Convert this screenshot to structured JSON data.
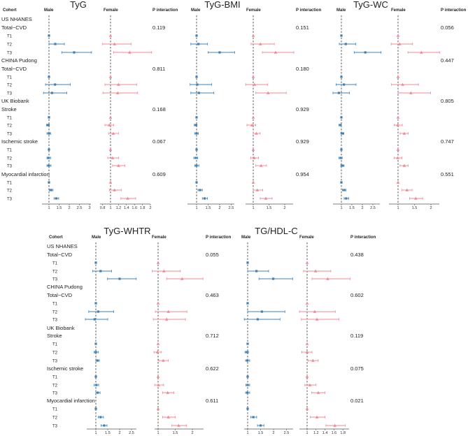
{
  "colors": {
    "male": "#3f80b6",
    "female": "#ef8a93",
    "ref_line": "#333333",
    "axis": "#555555"
  },
  "labels": {
    "cohort_header": "Cohort",
    "male": "Male",
    "female": "Female",
    "p_header": "P interaction",
    "tiers": [
      "T1",
      "T2",
      "T3"
    ],
    "groups": [
      {
        "cohort": "US NHANES",
        "outcomes": [
          "Total−CVD"
        ]
      },
      {
        "cohort": "CHINA Pudong",
        "outcomes": [
          "Total−CVD"
        ]
      },
      {
        "cohort": "UK Biobank",
        "outcomes": [
          "Stroke",
          "Ischemic stroke",
          "Myocardial infarction"
        ]
      }
    ]
  },
  "chart_data": [
    {
      "type": "forest",
      "title": "TyG",
      "p_interaction": [
        "0.119",
        "0.811",
        "0.168",
        "0.067",
        "0.609"
      ],
      "male_ticks": [
        1,
        1.5,
        2,
        2.5,
        3
      ],
      "female_ticks": [
        0.8,
        1,
        1.2,
        1.4,
        1.6,
        1.8,
        2
      ],
      "male": [
        [
          [
            1,
            1,
            1
          ],
          [
            1.31,
            1.0,
            1.76
          ],
          [
            2.24,
            1.63,
            3.1
          ]
        ],
        [
          [
            1,
            1,
            1
          ],
          [
            1.3,
            0.83,
            2.05
          ],
          [
            1.15,
            0.73,
            1.88
          ]
        ],
        [
          [
            1,
            1,
            1
          ],
          [
            0.95,
            0.88,
            1.02
          ],
          [
            1.0,
            0.9,
            1.08
          ]
        ],
        [
          [
            1,
            1,
            1
          ],
          [
            0.98,
            0.9,
            1.08
          ],
          [
            0.99,
            0.9,
            1.1
          ]
        ],
        [
          [
            1,
            1,
            1
          ],
          [
            1.1,
            1.02,
            1.2
          ],
          [
            1.36,
            1.25,
            1.48
          ]
        ]
      ],
      "female": [
        [
          [
            1,
            1,
            1
          ],
          [
            1.1,
            0.8,
            1.52
          ],
          [
            1.48,
            1.08,
            2.03
          ]
        ],
        [
          [
            1,
            1,
            1
          ],
          [
            1.2,
            0.86,
            1.66
          ],
          [
            1.18,
            0.81,
            1.68
          ]
        ],
        [
          [
            1,
            1,
            1
          ],
          [
            0.97,
            0.86,
            1.08
          ],
          [
            1.07,
            0.95,
            1.2
          ]
        ],
        [
          [
            1,
            1,
            1
          ],
          [
            1.05,
            0.93,
            1.2
          ],
          [
            1.2,
            1.05,
            1.36
          ]
        ],
        [
          [
            1,
            1,
            1
          ],
          [
            1.1,
            0.97,
            1.27
          ],
          [
            1.43,
            1.26,
            1.63
          ]
        ]
      ]
    },
    {
      "type": "forest",
      "title": "TyG-BMI",
      "p_interaction": [
        "0.151",
        "0.180",
        "0.929",
        "0.929",
        "0.954"
      ],
      "male_ticks": [
        1,
        1.5,
        2,
        2.5
      ],
      "female_ticks": [
        1,
        1.5,
        2
      ],
      "male": [
        [
          [
            1,
            1,
            1
          ],
          [
            1.08,
            0.75,
            1.47
          ],
          [
            2.0,
            1.5,
            2.65
          ]
        ],
        [
          [
            1,
            1,
            1
          ],
          [
            1.03,
            0.72,
            1.65
          ],
          [
            1.1,
            0.75,
            1.75
          ]
        ],
        [
          [
            1,
            1,
            1
          ],
          [
            0.97,
            0.9,
            1.02
          ],
          [
            1.0,
            0.92,
            1.08
          ]
        ],
        [
          [
            1,
            1,
            1
          ],
          [
            0.97,
            0.88,
            1.05
          ],
          [
            1.0,
            0.92,
            1.1
          ]
        ],
        [
          [
            1,
            1,
            1
          ],
          [
            1.15,
            1.06,
            1.25
          ],
          [
            1.35,
            1.25,
            1.47
          ]
        ]
      ],
      "female": [
        [
          [
            1,
            1,
            1
          ],
          [
            1.23,
            0.93,
            1.67
          ],
          [
            1.71,
            1.29,
            2.29
          ]
        ],
        [
          [
            1,
            1,
            1
          ],
          [
            1.04,
            0.76,
            1.46
          ],
          [
            1.47,
            1.08,
            2.05
          ]
        ],
        [
          [
            1,
            1,
            1
          ],
          [
            0.96,
            0.8,
            1.08
          ],
          [
            1.1,
            1.0,
            1.22
          ]
        ],
        [
          [
            1,
            1,
            1
          ],
          [
            1.03,
            0.92,
            1.17
          ],
          [
            1.25,
            1.08,
            1.42
          ]
        ],
        [
          [
            1,
            1,
            1
          ],
          [
            1.13,
            1.0,
            1.3
          ],
          [
            1.4,
            1.22,
            1.6
          ]
        ]
      ]
    },
    {
      "type": "forest",
      "title": "TyG-WC",
      "p_interaction": [
        "0.056",
        "0.447",
        "0.805",
        "0.747",
        "0.551"
      ],
      "male_ticks": [
        1,
        1.5,
        2,
        2.5
      ],
      "female_ticks": [
        1,
        1.5,
        2
      ],
      "male": [
        [
          [
            1,
            1,
            1
          ],
          [
            1.21,
            0.9,
            1.69
          ],
          [
            2.14,
            1.61,
            2.89
          ]
        ],
        [
          [
            1,
            1,
            1
          ],
          [
            1.12,
            0.75,
            1.7
          ],
          [
            0.88,
            0.6,
            1.38
          ]
        ],
        [
          [
            1,
            1,
            1
          ],
          [
            0.96,
            0.88,
            1.0
          ],
          [
            1.05,
            0.97,
            1.12
          ]
        ],
        [
          [
            1,
            1,
            1
          ],
          [
            0.97,
            0.88,
            1.04
          ],
          [
            1.05,
            0.97,
            1.13
          ]
        ],
        [
          [
            1,
            1,
            1
          ],
          [
            1.13,
            1.05,
            1.22
          ],
          [
            1.23,
            1.13,
            1.35
          ]
        ]
      ],
      "female": [
        [
          [
            1,
            1,
            1
          ],
          [
            1.05,
            0.79,
            1.44
          ],
          [
            1.71,
            1.3,
            2.27
          ]
        ],
        [
          [
            1,
            1,
            1
          ],
          [
            1.14,
            0.8,
            1.62
          ],
          [
            1.39,
            1.0,
            1.99
          ]
        ],
        [
          [
            1,
            1,
            1
          ],
          [
            0.99,
            0.88,
            1.13
          ],
          [
            1.19,
            1.06,
            1.31
          ]
        ],
        [
          [
            1,
            1,
            1
          ],
          [
            0.99,
            0.88,
            1.12
          ],
          [
            1.19,
            1.06,
            1.31
          ]
        ],
        [
          [
            1,
            1,
            1
          ],
          [
            1.27,
            1.12,
            1.43
          ],
          [
            1.54,
            1.35,
            1.75
          ]
        ]
      ]
    },
    {
      "type": "forest",
      "title": "TyG-WHTR",
      "p_interaction": [
        "0.055",
        "0.463",
        "0.712",
        "0.622",
        "0.611"
      ],
      "male_ticks": [
        1,
        1.5,
        2,
        2.5
      ],
      "female_ticks": [
        1,
        1.5,
        2
      ],
      "male": [
        [
          [
            1,
            1,
            1
          ],
          [
            1.2,
            0.87,
            1.66
          ],
          [
            2.0,
            1.49,
            2.7
          ]
        ],
        [
          [
            1,
            1,
            1
          ],
          [
            1.1,
            0.7,
            1.75
          ],
          [
            0.95,
            0.56,
            1.5
          ]
        ],
        [
          [
            1,
            1,
            1
          ],
          [
            1.0,
            0.93,
            1.1
          ],
          [
            1.07,
            1.0,
            1.15
          ]
        ],
        [
          [
            1,
            1,
            1
          ],
          [
            1.02,
            0.93,
            1.12
          ],
          [
            1.08,
            1.0,
            1.18
          ]
        ],
        [
          [
            1,
            1,
            1
          ],
          [
            1.2,
            1.1,
            1.32
          ],
          [
            1.35,
            1.22,
            1.47
          ]
        ]
      ],
      "female": [
        [
          [
            1,
            1,
            1
          ],
          [
            1.17,
            0.83,
            1.65
          ],
          [
            1.7,
            1.25,
            2.31
          ]
        ],
        [
          [
            1,
            1,
            1
          ],
          [
            1.3,
            0.92,
            1.84
          ],
          [
            1.25,
            0.86,
            1.8
          ]
        ],
        [
          [
            1,
            1,
            1
          ],
          [
            0.98,
            0.88,
            1.09
          ],
          [
            1.15,
            1.02,
            1.3
          ]
        ],
        [
          [
            1,
            1,
            1
          ],
          [
            1.01,
            0.9,
            1.16
          ],
          [
            1.28,
            1.13,
            1.46
          ]
        ],
        [
          [
            1,
            1,
            1
          ],
          [
            1.3,
            1.13,
            1.5
          ],
          [
            1.6,
            1.4,
            1.83
          ]
        ]
      ]
    },
    {
      "type": "forest",
      "title": "TG/HDL-C",
      "p_interaction": [
        "0.438",
        "0.602",
        "0.119",
        "0.075",
        "0.021"
      ],
      "male_ticks": [
        1,
        1.5,
        2,
        2.5
      ],
      "female_ticks": [
        1,
        1.2,
        1.4,
        1.6,
        1.8
      ],
      "male": [
        [
          [
            1,
            1,
            1
          ],
          [
            1.34,
            1.0,
            1.81
          ],
          [
            1.99,
            1.44,
            2.74
          ]
        ],
        [
          [
            1,
            1,
            1
          ],
          [
            1.55,
            1.0,
            2.44
          ],
          [
            1.39,
            0.87,
            2.25
          ]
        ],
        [
          [
            1,
            1,
            1
          ],
          [
            0.97,
            0.9,
            1.03
          ],
          [
            0.99,
            0.92,
            1.08
          ]
        ],
        [
          [
            1,
            1,
            1
          ],
          [
            1.0,
            0.93,
            1.08
          ],
          [
            0.99,
            0.92,
            1.08
          ]
        ],
        [
          [
            1,
            1,
            1
          ],
          [
            1.22,
            1.12,
            1.35
          ],
          [
            1.5,
            1.38,
            1.63
          ]
        ]
      ],
      "female": [
        [
          [
            1,
            1,
            1
          ],
          [
            1.19,
            0.92,
            1.53
          ],
          [
            1.46,
            1.11,
            1.96
          ]
        ],
        [
          [
            1,
            1,
            1
          ],
          [
            1.17,
            0.83,
            1.63
          ],
          [
            1.22,
            0.87,
            1.71
          ]
        ],
        [
          [
            1,
            1,
            1
          ],
          [
            1.0,
            0.88,
            1.11
          ],
          [
            1.13,
            1.02,
            1.25
          ]
        ],
        [
          [
            1,
            1,
            1
          ],
          [
            1.06,
            0.95,
            1.2
          ],
          [
            1.25,
            1.1,
            1.4
          ]
        ],
        [
          [
            1,
            1,
            1
          ],
          [
            1.22,
            1.07,
            1.4
          ],
          [
            1.62,
            1.42,
            1.85
          ]
        ]
      ]
    }
  ]
}
